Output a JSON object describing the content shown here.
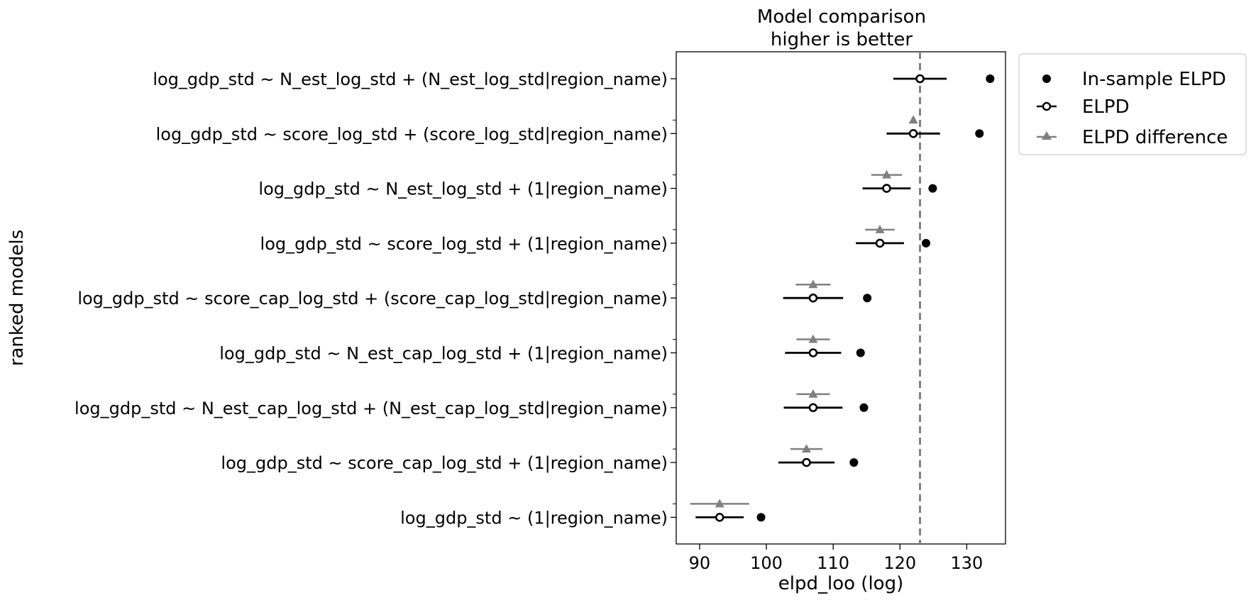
{
  "chart_data": {
    "type": "scatter",
    "title_lines": [
      "Model comparison",
      "higher is better"
    ],
    "xlabel": "elpd_loo (log)",
    "ylabel": "ranked models",
    "xlim": [
      86.5,
      135.8
    ],
    "xticks": [
      90,
      100,
      110,
      120,
      130
    ],
    "reference_line": 123.0,
    "grid": false,
    "legend_position": "outside-top-right",
    "legend": [
      {
        "label": "In-sample ELPD",
        "marker": "filled-circle"
      },
      {
        "label": "ELPD",
        "marker": "open-circle-with-line"
      },
      {
        "label": "ELPD difference",
        "marker": "triangle-with-line"
      }
    ],
    "models": [
      {
        "name": "log_gdp_std ~ N_est_log_std + (N_est_log_std|region_name)",
        "in_sample": 133.5,
        "elpd": 123.0,
        "elpd_se": 4.0,
        "diff_center": null,
        "diff_se": null
      },
      {
        "name": "log_gdp_std ~ score_log_std + (score_log_std|region_name)",
        "in_sample": 131.9,
        "elpd": 122.0,
        "elpd_se": 4.0,
        "diff_center": 122.0,
        "diff_se": 0.3
      },
      {
        "name": "log_gdp_std ~ N_est_log_std + (1|region_name)",
        "in_sample": 124.9,
        "elpd": 118.0,
        "elpd_se": 3.6,
        "diff_center": 118.0,
        "diff_se": 2.3
      },
      {
        "name": "log_gdp_std ~ score_log_std + (1|region_name)",
        "in_sample": 123.9,
        "elpd": 117.0,
        "elpd_se": 3.6,
        "diff_center": 117.0,
        "diff_se": 2.2
      },
      {
        "name": "log_gdp_std ~ score_cap_log_std + (score_cap_log_std|region_name)",
        "in_sample": 115.1,
        "elpd": 107.0,
        "elpd_se": 4.5,
        "diff_center": 107.0,
        "diff_se": 2.6
      },
      {
        "name": "log_gdp_std ~ N_est_cap_log_std + (1|region_name)",
        "in_sample": 114.1,
        "elpd": 107.0,
        "elpd_se": 4.2,
        "diff_center": 107.0,
        "diff_se": 2.5
      },
      {
        "name": "log_gdp_std ~ N_est_cap_log_std + (N_est_cap_log_std|region_name)",
        "in_sample": 114.6,
        "elpd": 107.0,
        "elpd_se": 4.4,
        "diff_center": 107.0,
        "diff_se": 2.5
      },
      {
        "name": "log_gdp_std ~ score_cap_log_std + (1|region_name)",
        "in_sample": 113.1,
        "elpd": 106.0,
        "elpd_se": 4.2,
        "diff_center": 106.0,
        "diff_se": 2.4
      },
      {
        "name": "log_gdp_std ~ (1|region_name)",
        "in_sample": 99.2,
        "elpd": 93.0,
        "elpd_se": 3.6,
        "diff_center": 93.0,
        "diff_se": 4.4
      }
    ],
    "colors": {
      "main": "#000000",
      "difference": "#808080",
      "reference": "#808080",
      "axes": "#000000"
    }
  }
}
